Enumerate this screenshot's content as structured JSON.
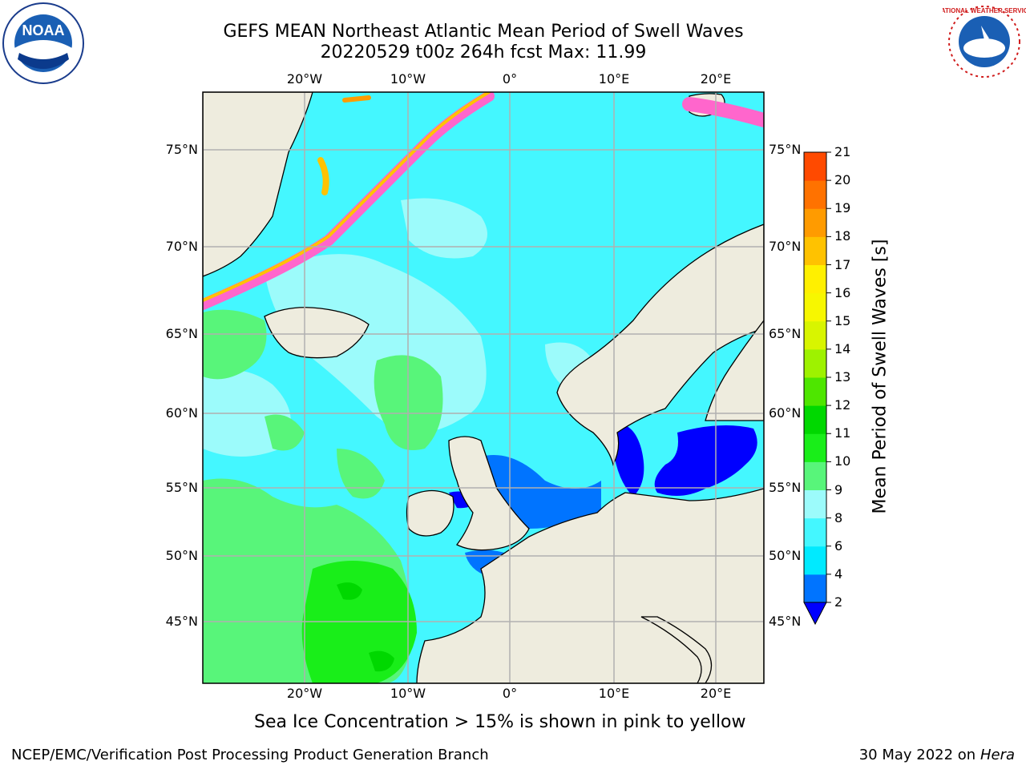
{
  "header": {
    "title_line1": "GEFS MEAN Northeast Atlantic Mean Period of Swell Waves",
    "title_line2": "20220529 t00z 264h fcst   Max: 11.99"
  },
  "map": {
    "lon_labels": [
      "20°W",
      "10°W",
      "0°",
      "10°E",
      "20°E"
    ],
    "lat_labels": [
      "75°N",
      "70°N",
      "65°N",
      "60°N",
      "55°N",
      "50°N",
      "45°N"
    ],
    "colors": {
      "land": "#eeecde",
      "ice_free_white": "#ffffff",
      "grid": "#b0b0b0"
    }
  },
  "colorbar": {
    "title": "Mean Period of Swell Waves [s]",
    "ticks": [
      "2",
      "4",
      "6",
      "8",
      "9",
      "10",
      "11",
      "12",
      "13",
      "14",
      "15",
      "16",
      "17",
      "18",
      "19",
      "20",
      "21"
    ],
    "colors": [
      "#0074ff",
      "#00eaff",
      "#44f7ff",
      "#9cfbfb",
      "#58f57a",
      "#19ee19",
      "#00d800",
      "#4ee600",
      "#9ef200",
      "#d8f500",
      "#f7f700",
      "#fff000",
      "#ffc200",
      "#ff9b00",
      "#ff7200",
      "#ff4a00",
      "#ff1a00"
    ],
    "extend_color": "#0000ff"
  },
  "caption": "Sea Ice Concentration > 15% is shown in pink to yellow",
  "footer": {
    "left": "NCEP/EMC/Verification Post Processing Product Generation Branch",
    "date": "30 May 2022 on",
    "machine": "Hera"
  },
  "logos": {
    "left": "NOAA",
    "right": "NATIONAL WEATHER SERVICE"
  }
}
